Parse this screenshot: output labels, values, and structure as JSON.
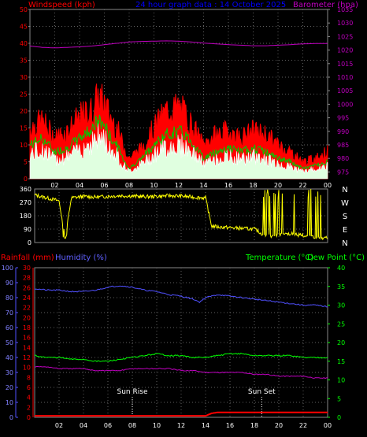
{
  "header": {
    "left_label": "Windspeed (kph)",
    "center_label": "24 hour graph data : 14 October 2025",
    "right_label": "Barometer (hpa)"
  },
  "bottom_header": {
    "rain_label": "Rainfall (mm)",
    "humidity_label": "Humidity (%)",
    "temp_label": "Temperature (°C)",
    "dew_label": "Dew Point (°C)"
  },
  "annotations": {
    "sunrise": "Sun Rise",
    "sunset": "Sun Set",
    "sunrise_hour": 8.0,
    "sunset_hour": 18.6
  },
  "colors": {
    "grid": "#606060",
    "windspeed_gust": "#ff0000",
    "windspeed_avg": "#00c800",
    "windspeed_light": "#e0ffe0",
    "barometer": "#c000c0",
    "direction": "#ffff00",
    "humidity": "#5050ff",
    "temperature": "#00ff00",
    "dewpoint": "#c000c0",
    "rainfall": "#ff0000",
    "left_label": "#ff0000",
    "center_label": "#0000ff",
    "right_label": "#c000c0",
    "humidity_label": "#6060ff",
    "temp_label": "#00ff00",
    "axis_white": "#ffffff"
  },
  "chart_data": [
    {
      "type": "line",
      "name": "wind-barometer",
      "x_ticks": [
        "02",
        "04",
        "06",
        "08",
        "10",
        "12",
        "14",
        "16",
        "18",
        "20",
        "22",
        "00"
      ],
      "left_axis": {
        "label": "Windspeed (kph)",
        "ticks": [
          0,
          5,
          10,
          15,
          20,
          25,
          30,
          35,
          40,
          45,
          50
        ],
        "ylim": [
          0,
          50
        ]
      },
      "right_axis": {
        "label": "Barometer (hpa)",
        "ticks": [
          975,
          980,
          985,
          990,
          995,
          1000,
          1005,
          1010,
          1015,
          1020,
          1025,
          1030,
          1035
        ],
        "ylim": [
          972.5,
          1035
        ]
      },
      "series": [
        {
          "name": "gust",
          "x": [
            0,
            1,
            2,
            3,
            4,
            5,
            5.5,
            6,
            6.5,
            7,
            7.5,
            8,
            9,
            10,
            11,
            12,
            12.5,
            13,
            13.5,
            14,
            15,
            16,
            17,
            18,
            19,
            20,
            21,
            22,
            23,
            24
          ],
          "values": [
            15,
            17,
            12,
            14,
            18,
            20,
            24,
            22,
            18,
            15,
            10,
            6,
            9,
            15,
            20,
            21,
            19,
            16,
            13,
            10,
            13,
            14,
            12,
            14,
            13,
            10,
            8,
            5,
            6,
            8
          ]
        },
        {
          "name": "average",
          "x": [
            0,
            1,
            2,
            3,
            4,
            5,
            5.5,
            6,
            6.5,
            7,
            7.5,
            8,
            9,
            10,
            11,
            12,
            12.5,
            13,
            13.5,
            14,
            15,
            16,
            17,
            18,
            19,
            20,
            21,
            22,
            23,
            24
          ],
          "values": [
            10,
            12,
            8,
            9,
            12,
            15,
            17,
            16,
            12,
            10,
            6,
            3,
            6,
            10,
            13,
            14,
            13,
            11,
            9,
            6,
            8,
            9,
            8,
            9,
            8,
            6,
            5,
            3,
            4,
            5
          ]
        },
        {
          "name": "barometer",
          "x": [
            0,
            1,
            2,
            3,
            4,
            5,
            6,
            7,
            8,
            9,
            10,
            11,
            12,
            13,
            14,
            15,
            16,
            17,
            18,
            19,
            20,
            21,
            22,
            23,
            24
          ],
          "values": [
            1021.5,
            1021,
            1020.8,
            1021,
            1021.2,
            1021.5,
            1022,
            1022.5,
            1023,
            1023.2,
            1023.3,
            1023.4,
            1023.3,
            1023,
            1022.6,
            1022.3,
            1022,
            1021.8,
            1021.6,
            1021.6,
            1021.8,
            1022,
            1022.3,
            1022.4,
            1022.4
          ]
        }
      ]
    },
    {
      "type": "line",
      "name": "wind-direction",
      "left_axis": {
        "ticks": [
          0,
          90,
          180,
          270,
          360
        ],
        "ylim": [
          0,
          360
        ]
      },
      "right_axis_labels": [
        "N",
        "W",
        "S",
        "E",
        "N"
      ],
      "series": [
        {
          "name": "direction",
          "x": [
            0,
            1,
            2,
            2.5,
            3,
            4,
            5,
            6,
            7,
            8,
            9,
            10,
            11,
            12,
            13,
            14,
            14.5,
            15,
            16,
            17,
            18,
            19,
            20,
            21,
            22,
            23,
            24
          ],
          "values": [
            320,
            300,
            280,
            30,
            300,
            310,
            305,
            310,
            315,
            312,
            308,
            310,
            315,
            312,
            305,
            300,
            110,
            105,
            100,
            95,
            90,
            40,
            50,
            60,
            45,
            35,
            30
          ]
        }
      ]
    },
    {
      "type": "line",
      "name": "temp-humidity-rain",
      "humidity_axis": {
        "label": "Humidity (%)",
        "ticks": [
          0,
          10,
          20,
          30,
          40,
          50,
          60,
          70,
          80,
          90,
          100
        ],
        "ylim": [
          0,
          100
        ]
      },
      "rain_axis": {
        "label": "Rainfall (mm)",
        "ticks": [
          0,
          2,
          4,
          6,
          8,
          10,
          12,
          14,
          16,
          18,
          20,
          22,
          24,
          26,
          28,
          30
        ],
        "ylim": [
          0,
          30
        ]
      },
      "temp_axis": {
        "label": "Temperature (°C)",
        "ticks": [
          0,
          5,
          10,
          15,
          20,
          25,
          30,
          35,
          40
        ],
        "ylim": [
          0,
          40
        ]
      },
      "series": [
        {
          "name": "humidity",
          "x": [
            0,
            1,
            2,
            3,
            4,
            5,
            6,
            7,
            8,
            9,
            10,
            11,
            12,
            13,
            13.5,
            14,
            15,
            16,
            17,
            18,
            19,
            20,
            21,
            22,
            23,
            24
          ],
          "values": [
            86,
            85,
            85,
            84,
            84,
            85,
            87,
            88,
            87,
            85,
            84,
            82,
            81,
            79,
            77,
            80,
            82,
            81,
            80,
            79,
            78,
            77,
            76,
            75,
            75,
            74
          ]
        },
        {
          "name": "temperature",
          "x": [
            0,
            1,
            2,
            3,
            4,
            5,
            6,
            7,
            8,
            9,
            10,
            11,
            12,
            13,
            14,
            15,
            16,
            17,
            18,
            19,
            20,
            21,
            22,
            23,
            24
          ],
          "values": [
            16.5,
            16,
            16,
            15.5,
            15.5,
            15,
            15,
            15.5,
            16,
            16.5,
            17,
            16.5,
            16.5,
            16,
            16,
            16.5,
            17,
            17,
            16.5,
            16.5,
            16.5,
            16.5,
            16,
            16,
            16
          ]
        },
        {
          "name": "dewpoint",
          "x": [
            0,
            1,
            2,
            3,
            4,
            5,
            6,
            7,
            8,
            9,
            10,
            11,
            12,
            13,
            14,
            15,
            16,
            17,
            18,
            19,
            20,
            21,
            22,
            23,
            24
          ],
          "values": [
            13.5,
            13.5,
            13,
            13,
            13,
            12.5,
            12.5,
            12.5,
            13,
            13,
            13,
            13,
            12.5,
            12.5,
            12,
            12,
            12,
            12,
            11.5,
            11.5,
            11,
            11,
            11,
            10.5,
            10.5
          ]
        },
        {
          "name": "rainfall",
          "x": [
            0,
            2,
            4,
            6,
            8,
            10,
            12,
            14,
            14.5,
            15,
            16,
            18,
            20,
            22,
            24
          ],
          "values": [
            0.3,
            0.3,
            0.3,
            0.3,
            0.3,
            0.3,
            0.3,
            0.3,
            0.8,
            1.0,
            1.0,
            1.0,
            1.0,
            1.0,
            1.0
          ]
        }
      ]
    }
  ]
}
